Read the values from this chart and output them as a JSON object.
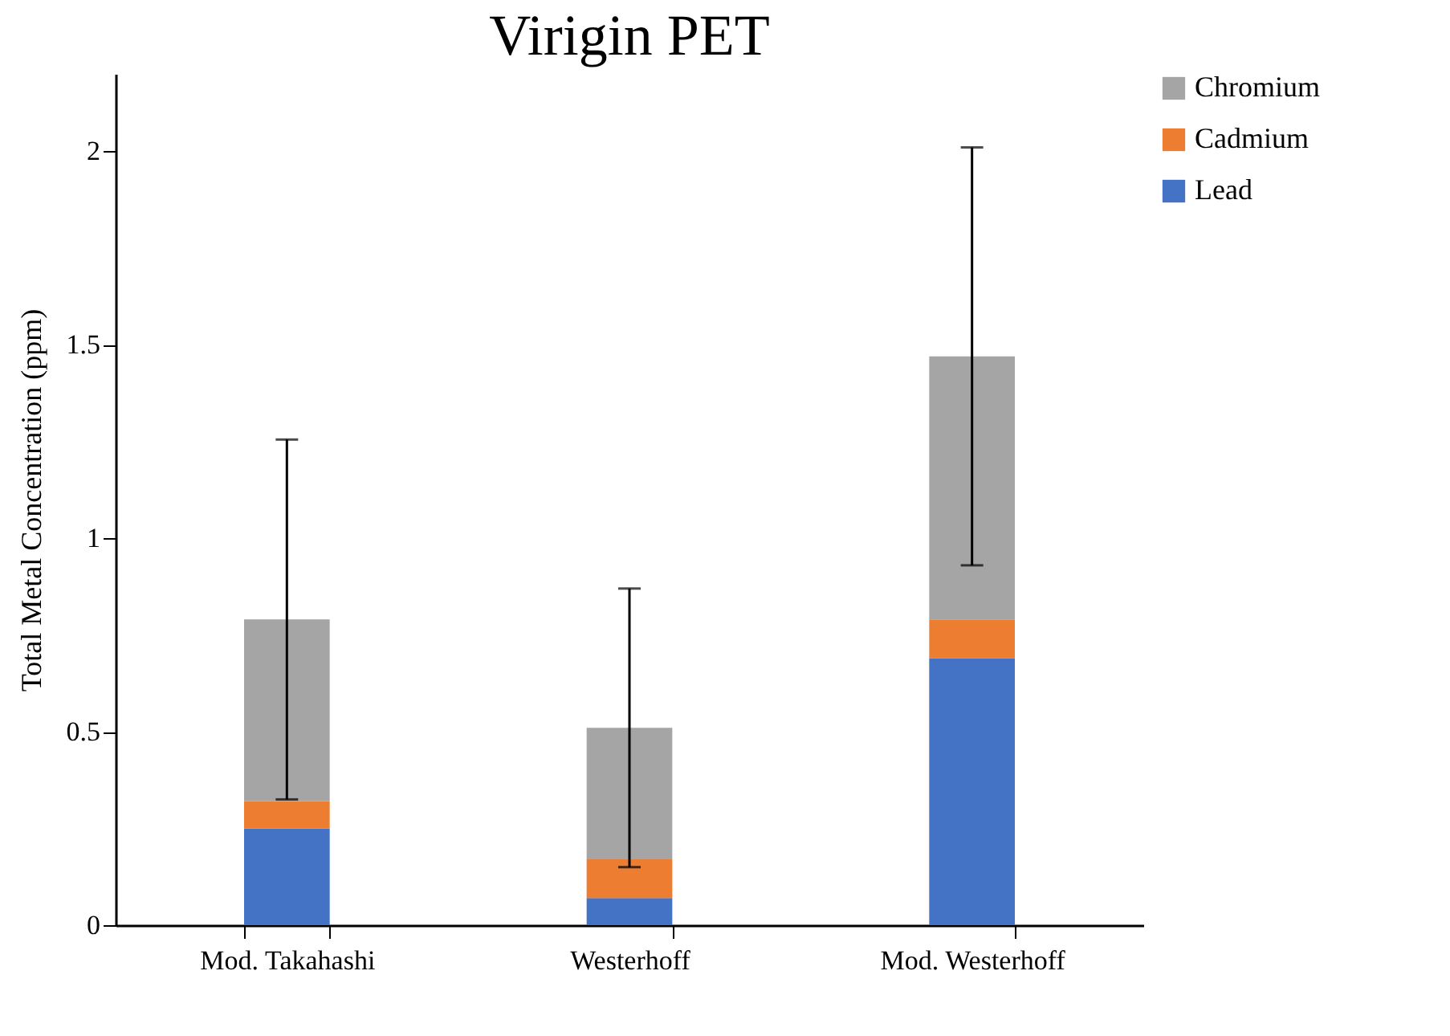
{
  "chart_data": {
    "type": "bar",
    "title": "Virigin PET",
    "ylabel": "Total Metal Concentration (ppm)",
    "categories": [
      "Mod. Takahashi",
      "Westerhoff",
      "Mod. Westerhoff"
    ],
    "stacked": true,
    "series": [
      {
        "name": "Lead",
        "color": "#4472c4",
        "values": [
          0.25,
          0.07,
          0.69
        ]
      },
      {
        "name": "Cadmium",
        "color": "#ed7d31",
        "values": [
          0.07,
          0.1,
          0.1
        ]
      },
      {
        "name": "Chromium",
        "color": "#a5a5a5",
        "values": [
          0.47,
          0.34,
          0.68
        ],
        "errors": [
          0.465,
          0.36,
          0.54
        ]
      }
    ],
    "ylim": [
      0,
      2.2
    ],
    "yticks": [
      0,
      0.5,
      1,
      1.5,
      2
    ],
    "grid": false,
    "legend": "right"
  }
}
